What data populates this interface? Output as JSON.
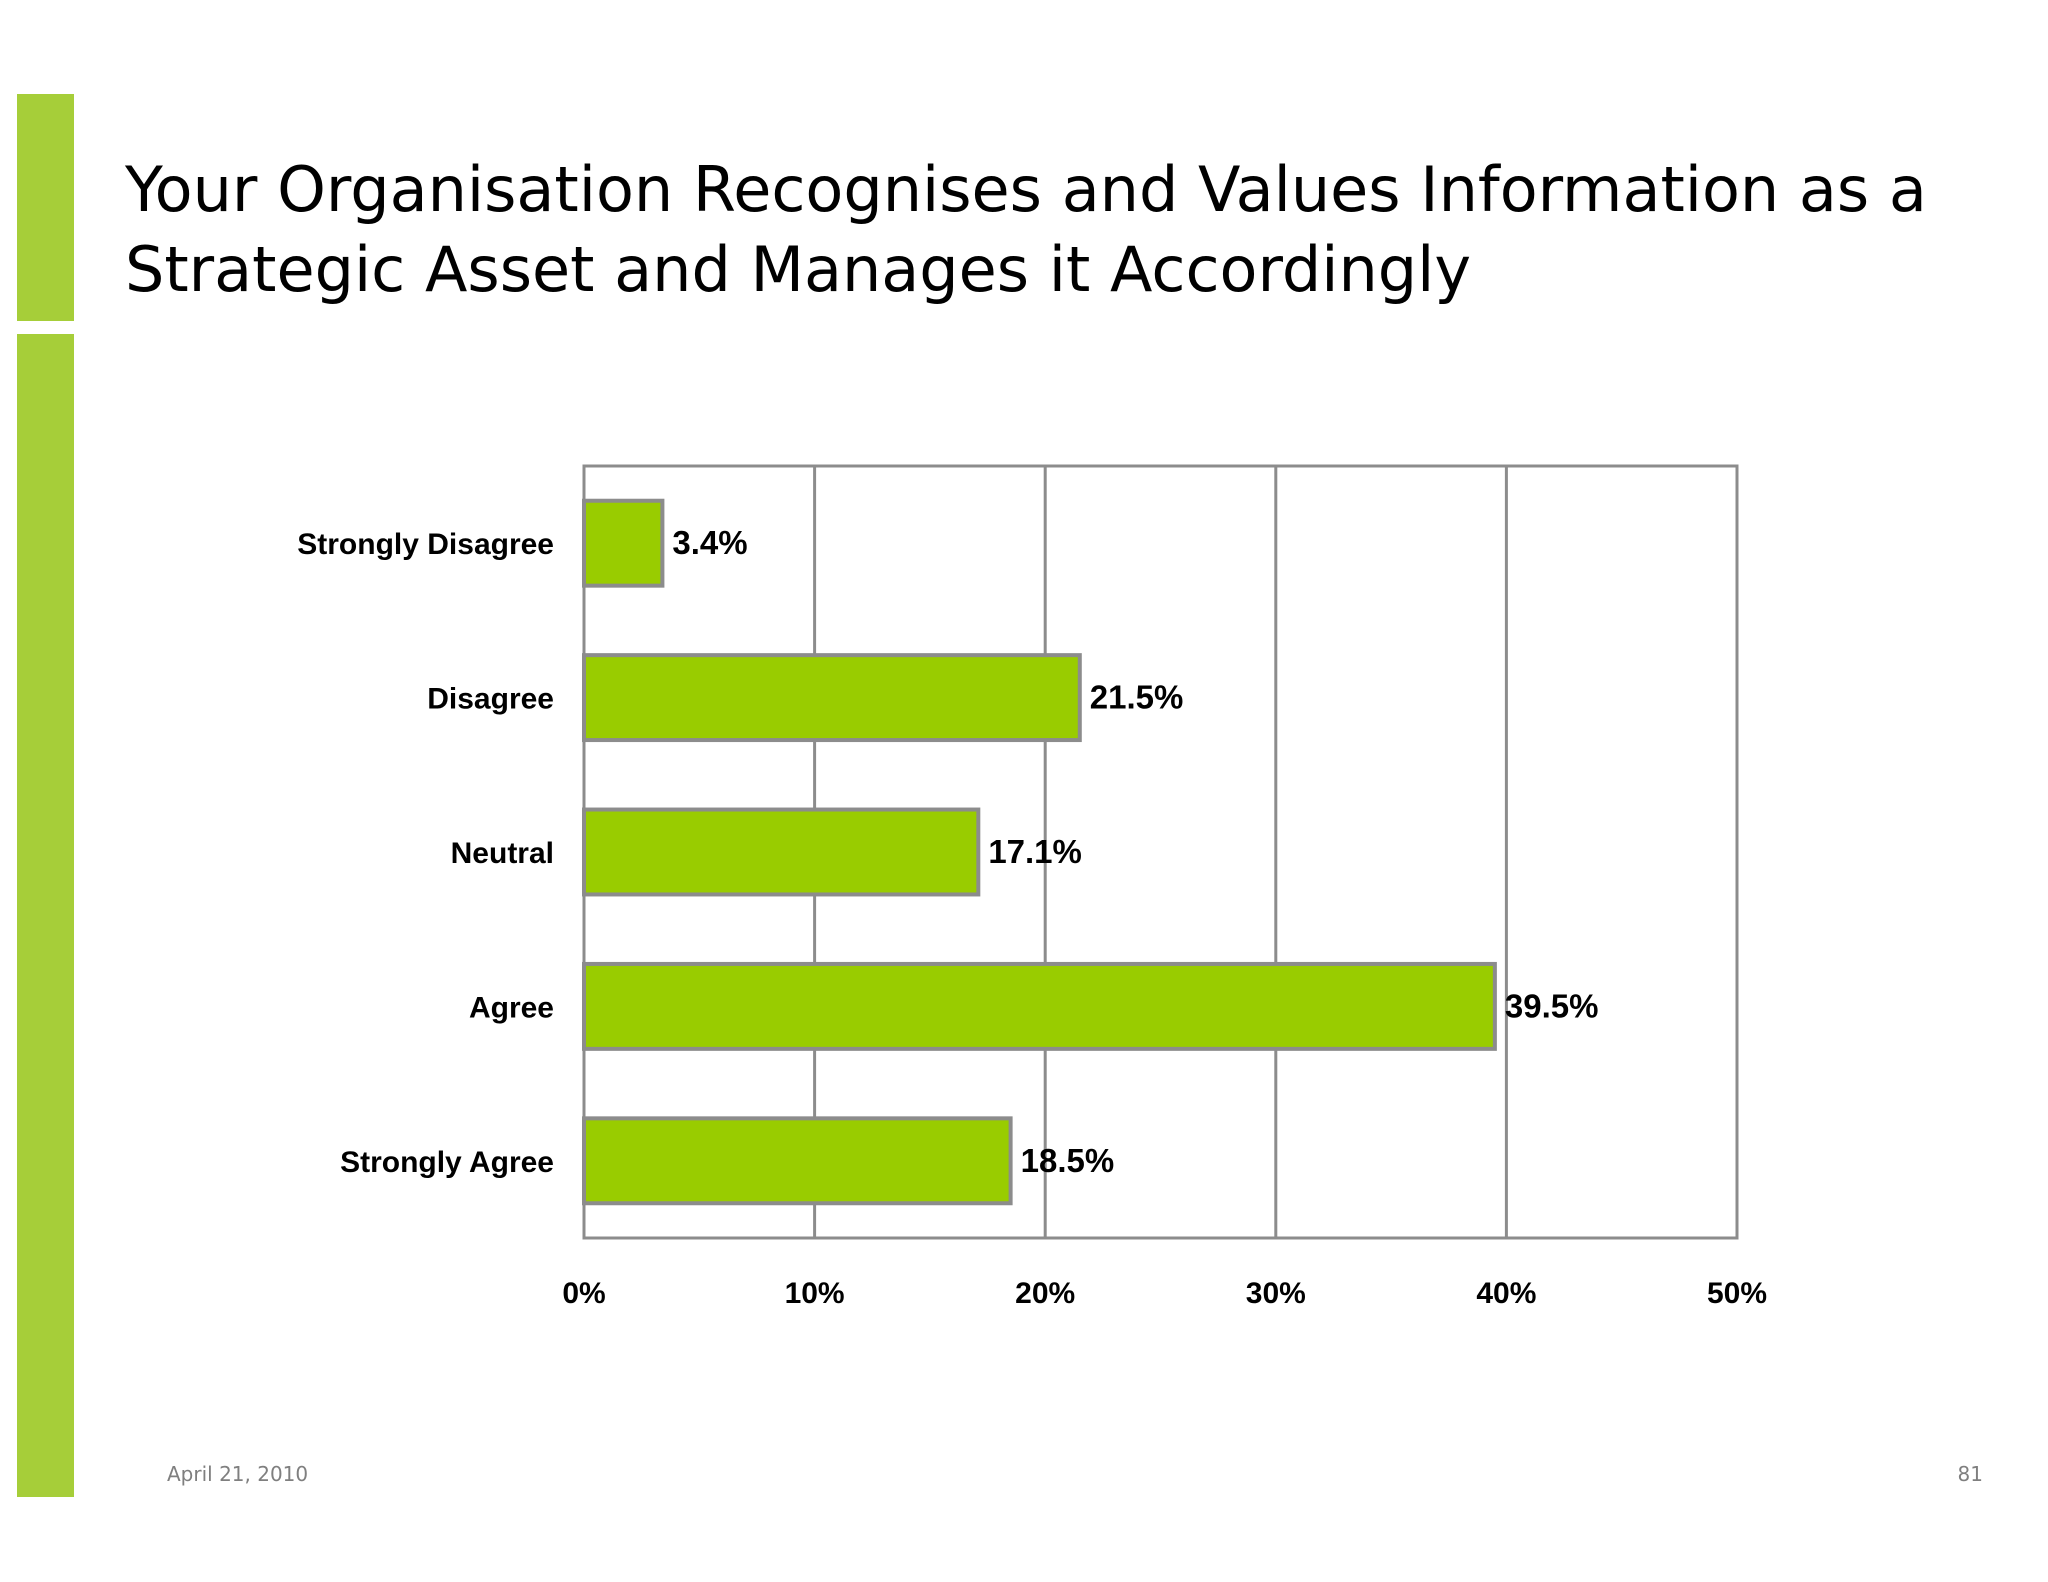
{
  "slide": {
    "title_line1": "Your Organisation Recognises and Values Information as a",
    "title_line2": "Strategic Asset and Manages it Accordingly",
    "date": "April 21, 2010",
    "page_number": "81",
    "accent_color": "#a6ce39"
  },
  "chart_data": {
    "type": "bar",
    "orientation": "horizontal",
    "categories": [
      "Strongly Disagree",
      "Disagree",
      "Neutral",
      "Agree",
      "Strongly Agree"
    ],
    "values": [
      3.4,
      21.5,
      17.1,
      39.5,
      18.5
    ],
    "value_labels": [
      "3.4%",
      "21.5%",
      "17.1%",
      "39.5%",
      "18.5%"
    ],
    "xlim": [
      0,
      50
    ],
    "x_ticks": [
      0,
      10,
      20,
      30,
      40,
      50
    ],
    "x_tick_labels": [
      "0%",
      "10%",
      "20%",
      "30%",
      "40%",
      "50%"
    ],
    "xlabel": "",
    "ylabel": "",
    "grid": true,
    "bar_color": "#99cc00",
    "bar_edge_color": "#8c8c8c",
    "grid_color": "#8c8c8c"
  }
}
